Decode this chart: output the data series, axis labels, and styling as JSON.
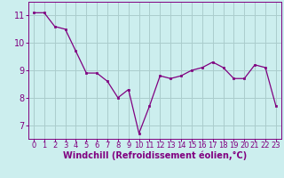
{
  "x": [
    0,
    1,
    2,
    3,
    4,
    5,
    6,
    7,
    8,
    9,
    10,
    11,
    12,
    13,
    14,
    15,
    16,
    17,
    18,
    19,
    20,
    21,
    22,
    23
  ],
  "y": [
    11.1,
    11.1,
    10.6,
    10.5,
    9.7,
    8.9,
    8.9,
    8.6,
    8.0,
    8.3,
    6.7,
    7.7,
    8.8,
    8.7,
    8.8,
    9.0,
    9.1,
    9.3,
    9.1,
    8.7,
    8.7,
    9.2,
    9.1,
    7.7
  ],
  "line_color": "#800080",
  "marker_color": "#800080",
  "bg_color": "#cceeee",
  "grid_color": "#aacccc",
  "xlabel": "Windchill (Refroidissement éolien,°C)",
  "ylim": [
    6.5,
    11.5
  ],
  "xlim": [
    -0.5,
    23.5
  ],
  "yticks": [
    7,
    8,
    9,
    10,
    11
  ],
  "xticks": [
    0,
    1,
    2,
    3,
    4,
    5,
    6,
    7,
    8,
    9,
    10,
    11,
    12,
    13,
    14,
    15,
    16,
    17,
    18,
    19,
    20,
    21,
    22,
    23
  ],
  "label_color": "#800080",
  "tick_color": "#800080",
  "tick_fontsize": 6,
  "xlabel_fontsize": 7
}
